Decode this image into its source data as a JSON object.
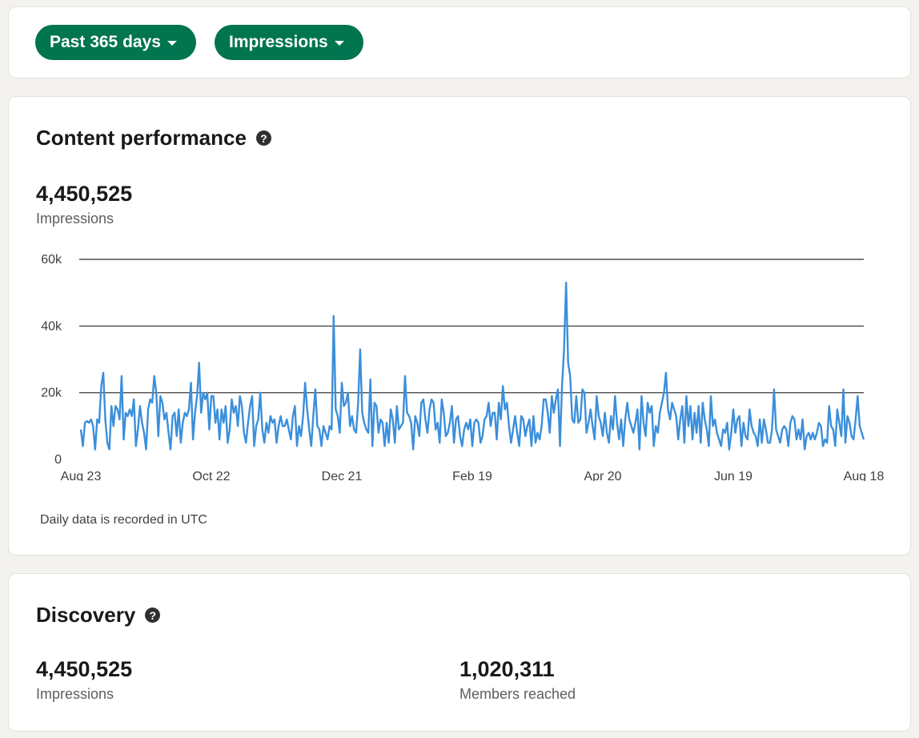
{
  "filters": {
    "range_label": "Past 365 days",
    "metric_label": "Impressions"
  },
  "performance": {
    "title": "Content performance",
    "total": "4,450,525",
    "total_label": "Impressions",
    "footnote": "Daily data is recorded in UTC"
  },
  "discovery": {
    "title": "Discovery",
    "impressions": "4,450,525",
    "impressions_label": "Impressions",
    "members": "1,020,311",
    "members_label": "Members reached"
  },
  "colors": {
    "accent": "#01754f",
    "line": "#3b8fdb",
    "grid": "#2a2a2a"
  },
  "chart_data": {
    "type": "line",
    "title": "Content performance",
    "xlabel": "",
    "ylabel": "Impressions",
    "ylim": [
      0,
      60000
    ],
    "yticks": [
      0,
      20000,
      40000,
      60000
    ],
    "ytick_labels": [
      "0",
      "20k",
      "40k",
      "60k"
    ],
    "xtick_labels": [
      "Aug 23",
      "Oct 22",
      "Dec 21",
      "Feb 19",
      "Apr 20",
      "Jun 19",
      "Aug 18"
    ],
    "series": [
      {
        "name": "Impressions",
        "values": [
          9000,
          4000,
          11000,
          11500,
          11000,
          12000,
          10000,
          3000,
          12000,
          11000,
          22000,
          26000,
          12000,
          5000,
          3000,
          16000,
          10000,
          16000,
          15000,
          12000,
          25000,
          6000,
          14000,
          13000,
          15000,
          13000,
          18000,
          4000,
          9000,
          16000,
          11000,
          8000,
          3000,
          15000,
          18000,
          17000,
          25000,
          20000,
          7000,
          19000,
          17000,
          12000,
          14000,
          8000,
          3000,
          13000,
          14000,
          7000,
          15000,
          5000,
          11000,
          14000,
          13000,
          15000,
          23000,
          6000,
          14000,
          19000,
          29000,
          14000,
          20000,
          18000,
          20000,
          9000,
          19000,
          19000,
          11000,
          15000,
          6000,
          15000,
          11000,
          16000,
          5000,
          9000,
          18000,
          14000,
          16000,
          10000,
          19000,
          16000,
          8000,
          5000,
          11000,
          16000,
          19000,
          4000,
          10000,
          12000,
          20000,
          9000,
          5000,
          11000,
          8000,
          13000,
          11000,
          12000,
          5000,
          10000,
          13000,
          10000,
          10000,
          12000,
          9000,
          6000,
          13000,
          16000,
          4000,
          10000,
          7000,
          13000,
          23000,
          15000,
          9000,
          4000,
          13000,
          21000,
          10000,
          9000,
          4000,
          10000,
          8000,
          6000,
          10000,
          9000,
          43000,
          15000,
          13000,
          8000,
          23000,
          16000,
          17000,
          20000,
          10000,
          13000,
          9000,
          8000,
          17000,
          33000,
          14000,
          11000,
          9000,
          8000,
          24000,
          4000,
          17000,
          16000,
          8000,
          12000,
          11000,
          4000,
          11000,
          5000,
          15000,
          12000,
          5000,
          16000,
          9000,
          10000,
          11000,
          25000,
          14000,
          13000,
          11000,
          3000,
          13000,
          11000,
          7000,
          17000,
          18000,
          12000,
          8000,
          15000,
          18000,
          17000,
          9000,
          11000,
          5000,
          18000,
          14000,
          7000,
          8000,
          11000,
          16000,
          5000,
          12000,
          13000,
          7000,
          4000,
          9000,
          11000,
          9000,
          12000,
          4000,
          11000,
          12000,
          11000,
          5000,
          7000,
          12000,
          13000,
          17000,
          10000,
          14000,
          14000,
          6000,
          17000,
          12000,
          22000,
          15000,
          17000,
          10000,
          5000,
          9000,
          13000,
          8000,
          4000,
          13000,
          12000,
          7000,
          10000,
          12000,
          4000,
          13000,
          5000,
          8000,
          6000,
          10000,
          18000,
          18000,
          14000,
          8000,
          19000,
          14000,
          18000,
          21000,
          4000,
          22000,
          33000,
          53000,
          29000,
          25000,
          12000,
          11000,
          19000,
          11000,
          12000,
          21000,
          20000,
          8000,
          11000,
          15000,
          10000,
          6000,
          19000,
          13000,
          11000,
          7000,
          14000,
          8000,
          5000,
          13000,
          9000,
          19000,
          11000,
          6000,
          12000,
          4000,
          12000,
          17000,
          12000,
          10000,
          8000,
          11000,
          15000,
          3000,
          19000,
          11000,
          7000,
          17000,
          14000,
          16000,
          4000,
          10000,
          8000,
          14000,
          17000,
          20000,
          26000,
          15000,
          12000,
          17000,
          15000,
          13000,
          6000,
          12000,
          16000,
          5000,
          19000,
          10000,
          16000,
          6000,
          14000,
          8000,
          16000,
          5000,
          17000,
          12000,
          9000,
          4000,
          19000,
          10000,
          12000,
          8000,
          6000,
          4000,
          9000,
          8000,
          11000,
          3000,
          8000,
          15000,
          8000,
          12000,
          13000,
          4000,
          11000,
          7000,
          6000,
          15000,
          10000,
          8000,
          7000,
          4000,
          12000,
          5000,
          12000,
          9000,
          5000,
          5000,
          9000,
          21000,
          9000,
          7000,
          5000,
          9000,
          10000,
          9000,
          4000,
          11000,
          13000,
          12000,
          6000,
          9000,
          6000,
          12000,
          3000,
          7000,
          8000,
          6000,
          8000,
          6000,
          8000,
          11000,
          10000,
          4000,
          6000,
          5000,
          16000,
          10000,
          9000,
          4000,
          15000,
          11000,
          7000,
          21000,
          5000,
          13000,
          11000,
          7000,
          6000,
          12000,
          19000,
          10000,
          8000,
          6000
        ]
      }
    ]
  }
}
